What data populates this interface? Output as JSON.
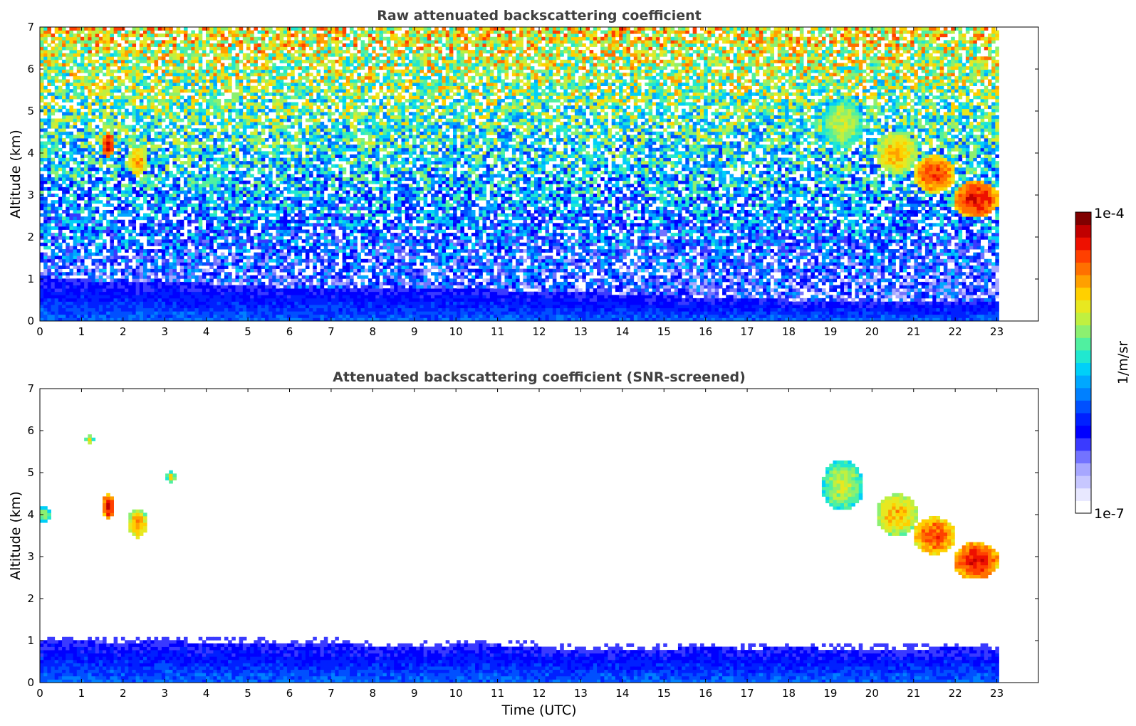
{
  "colors": {
    "scale": [
      "#ffffff",
      "#e8e8ff",
      "#c7c7ff",
      "#a7a7ff",
      "#7373ff",
      "#3a3aff",
      "#0000ff",
      "#0020ff",
      "#0050ff",
      "#0080ff",
      "#00a8ff",
      "#00d0f8",
      "#20e8d0",
      "#50f0a0",
      "#8cf070",
      "#c0f040",
      "#e8e820",
      "#ffd000",
      "#ffa000",
      "#ff7000",
      "#ff4000",
      "#ee1000",
      "#c00000",
      "#800000"
    ],
    "axis": "#000000",
    "title": "#404040"
  },
  "colorbar": {
    "label": "1/m/sr",
    "top_label": "1e-4",
    "bottom_label": "1e-7",
    "scale": "log"
  },
  "chart_data": [
    {
      "type": "heatmap",
      "title": "Raw attenuated backscattering coefficient",
      "xlabel": "",
      "ylabel": "Altitude (km)",
      "xlim": [
        0,
        24
      ],
      "ylim": [
        0,
        7
      ],
      "data_end": 23.05,
      "xticks": [
        "0",
        "1",
        "2",
        "3",
        "4",
        "5",
        "6",
        "7",
        "8",
        "9",
        "10",
        "11",
        "12",
        "13",
        "14",
        "15",
        "16",
        "17",
        "18",
        "19",
        "20",
        "21",
        "22",
        "23"
      ],
      "yticks": [
        "0",
        "1",
        "2",
        "3",
        "4",
        "5",
        "6",
        "7"
      ],
      "value_unit": "log10(1/m/sr)",
      "noise_mode": "raw",
      "boundary_layer": {
        "top_km": [
          [
            0,
            1.0
          ],
          [
            1,
            1.0
          ],
          [
            2,
            0.9
          ],
          [
            3,
            0.95
          ],
          [
            4,
            0.9
          ],
          [
            5,
            0.85
          ],
          [
            6,
            0.8
          ],
          [
            7,
            0.8
          ],
          [
            8,
            0.75
          ],
          [
            9,
            0.75
          ],
          [
            10,
            0.8
          ],
          [
            11,
            0.75
          ],
          [
            12,
            0.7
          ],
          [
            13,
            0.7
          ],
          [
            14,
            0.65
          ],
          [
            15,
            0.6
          ],
          [
            16,
            0.55
          ],
          [
            17,
            0.55
          ],
          [
            18,
            0.5
          ],
          [
            19,
            0.5
          ],
          [
            20,
            0.5
          ],
          [
            21,
            0.5
          ],
          [
            22,
            0.5
          ],
          [
            23,
            0.5
          ]
        ],
        "value_surface": -5.9,
        "value_top": -6.3
      },
      "clouds": [
        {
          "t": 0.1,
          "z": 4.0,
          "dt": 0.15,
          "dz": 0.18,
          "v": -5.1
        },
        {
          "t": 1.65,
          "z": 4.2,
          "dt": 0.14,
          "dz": 0.3,
          "v": -4.2
        },
        {
          "t": 2.35,
          "z": 3.8,
          "dt": 0.22,
          "dz": 0.35,
          "v": -4.6
        },
        {
          "t": 1.2,
          "z": 5.8,
          "dt": 0.1,
          "dz": 0.1,
          "v": -4.9
        },
        {
          "t": 3.15,
          "z": 4.9,
          "dt": 0.1,
          "dz": 0.12,
          "v": -4.9
        },
        {
          "t": 19.3,
          "z": 4.7,
          "dt": 0.5,
          "dz": 0.6,
          "v": -5.0
        },
        {
          "t": 20.6,
          "z": 4.0,
          "dt": 0.5,
          "dz": 0.5,
          "v": -4.7
        },
        {
          "t": 21.5,
          "z": 3.5,
          "dt": 0.5,
          "dz": 0.45,
          "v": -4.4
        },
        {
          "t": 22.5,
          "z": 2.9,
          "dt": 0.55,
          "dz": 0.45,
          "v": -4.25
        }
      ]
    },
    {
      "type": "heatmap",
      "title": "Attenuated backscattering coefficient (SNR-screened)",
      "xlabel": "Time (UTC)",
      "ylabel": "Altitude (km)",
      "xlim": [
        0,
        24
      ],
      "ylim": [
        0,
        7
      ],
      "data_end": 23.05,
      "xticks": [
        "0",
        "1",
        "2",
        "3",
        "4",
        "5",
        "6",
        "7",
        "8",
        "9",
        "10",
        "11",
        "12",
        "13",
        "14",
        "15",
        "16",
        "17",
        "18",
        "19",
        "20",
        "21",
        "22",
        "23"
      ],
      "yticks": [
        "0",
        "1",
        "2",
        "3",
        "4",
        "5",
        "6",
        "7"
      ],
      "value_unit": "log10(1/m/sr)",
      "noise_mode": "screened",
      "boundary_layer": {
        "top_km": [
          [
            0,
            1.0
          ],
          [
            1,
            1.0
          ],
          [
            2,
            0.95
          ],
          [
            3,
            1.0
          ],
          [
            4,
            0.95
          ],
          [
            5,
            0.95
          ],
          [
            6,
            0.9
          ],
          [
            7,
            0.95
          ],
          [
            8,
            0.85
          ],
          [
            9,
            0.85
          ],
          [
            10,
            0.9
          ],
          [
            11,
            0.9
          ],
          [
            12,
            0.85
          ],
          [
            13,
            0.75
          ],
          [
            14,
            0.8
          ],
          [
            15,
            0.8
          ],
          [
            16,
            0.85
          ],
          [
            17,
            0.8
          ],
          [
            18,
            0.85
          ],
          [
            19,
            0.8
          ],
          [
            20,
            0.8
          ],
          [
            21,
            0.8
          ],
          [
            22,
            0.85
          ],
          [
            23,
            0.8
          ]
        ],
        "value_surface": -5.9,
        "value_top": -6.3
      },
      "clouds": [
        {
          "t": 0.1,
          "z": 4.0,
          "dt": 0.15,
          "dz": 0.18,
          "v": -5.1
        },
        {
          "t": 1.65,
          "z": 4.2,
          "dt": 0.14,
          "dz": 0.3,
          "v": -4.2
        },
        {
          "t": 2.35,
          "z": 3.8,
          "dt": 0.22,
          "dz": 0.35,
          "v": -4.6
        },
        {
          "t": 1.2,
          "z": 5.8,
          "dt": 0.1,
          "dz": 0.1,
          "v": -4.9
        },
        {
          "t": 3.15,
          "z": 4.9,
          "dt": 0.1,
          "dz": 0.12,
          "v": -4.9
        },
        {
          "t": 19.3,
          "z": 4.7,
          "dt": 0.5,
          "dz": 0.6,
          "v": -5.0
        },
        {
          "t": 20.6,
          "z": 4.0,
          "dt": 0.5,
          "dz": 0.5,
          "v": -4.7
        },
        {
          "t": 21.5,
          "z": 3.5,
          "dt": 0.5,
          "dz": 0.45,
          "v": -4.4
        },
        {
          "t": 22.5,
          "z": 2.9,
          "dt": 0.55,
          "dz": 0.45,
          "v": -4.25
        }
      ]
    }
  ]
}
